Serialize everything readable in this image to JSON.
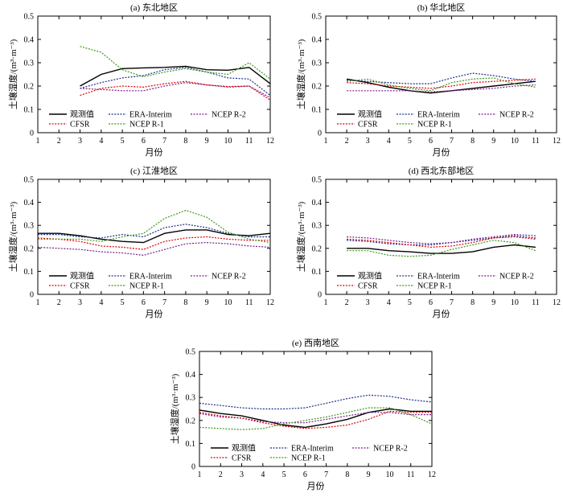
{
  "chart_data": [
    {
      "type": "line",
      "title": "(a) 东北地区",
      "xlabel": "月份",
      "ylabel": "土壤湿度/(m³·m⁻³)",
      "xticks": [
        1,
        2,
        3,
        4,
        5,
        6,
        7,
        8,
        9,
        10,
        11,
        12
      ],
      "yticks": [
        0,
        0.1,
        0.2,
        0.3,
        0.4,
        0.5
      ],
      "xlim": [
        1,
        12
      ],
      "ylim": [
        0,
        0.5
      ],
      "grid": false,
      "legend_position": "bottom-left",
      "series": [
        {
          "name": "观测值",
          "color": "#000000",
          "style": "solid",
          "x": [
            3,
            4,
            5,
            6,
            7,
            8,
            9,
            10,
            11,
            12
          ],
          "values": [
            0.2,
            0.25,
            0.275,
            0.278,
            0.28,
            0.285,
            0.27,
            0.268,
            0.28,
            0.21
          ]
        },
        {
          "name": "ERA-Interim",
          "color": "#1f2d8a",
          "style": "dotted",
          "x": [
            3,
            4,
            5,
            6,
            7,
            8,
            9,
            10,
            11,
            12
          ],
          "values": [
            0.19,
            0.215,
            0.235,
            0.245,
            0.27,
            0.28,
            0.26,
            0.235,
            0.23,
            0.16
          ]
        },
        {
          "name": "NCEP R-2",
          "color": "#7a1f8a",
          "style": "dotted",
          "x": [
            3,
            4,
            5,
            6,
            7,
            8,
            9,
            10,
            11,
            12
          ],
          "values": [
            0.19,
            0.185,
            0.18,
            0.18,
            0.2,
            0.215,
            0.205,
            0.195,
            0.2,
            0.15
          ]
        },
        {
          "name": "CFSR",
          "color": "#e00000",
          "style": "dotted",
          "x": [
            3,
            4,
            5,
            6,
            7,
            8,
            9,
            10,
            11,
            12
          ],
          "values": [
            0.16,
            0.19,
            0.2,
            0.195,
            0.21,
            0.22,
            0.205,
            0.198,
            0.2,
            0.14
          ]
        },
        {
          "name": "NCEP R-1",
          "color": "#3a9a1a",
          "style": "dotted",
          "x": [
            3,
            4,
            5,
            6,
            7,
            8,
            9,
            10,
            11,
            12
          ],
          "values": [
            0.37,
            0.345,
            0.27,
            0.24,
            0.26,
            0.275,
            0.26,
            0.25,
            0.3,
            0.23
          ]
        }
      ]
    },
    {
      "type": "line",
      "title": "(b) 华北地区",
      "xlabel": "月份",
      "ylabel": "土壤湿度/(m³·m⁻³)",
      "xticks": [
        1,
        2,
        3,
        4,
        5,
        6,
        7,
        8,
        9,
        10,
        11,
        12
      ],
      "yticks": [
        0,
        0.1,
        0.2,
        0.3,
        0.4,
        0.5
      ],
      "xlim": [
        1,
        12
      ],
      "ylim": [
        0,
        0.5
      ],
      "grid": false,
      "legend_position": "bottom-left",
      "series": [
        {
          "name": "观测值",
          "color": "#000000",
          "style": "solid",
          "x": [
            2,
            3,
            4,
            5,
            6,
            7,
            8,
            9,
            10,
            11
          ],
          "values": [
            0.23,
            0.215,
            0.195,
            0.18,
            0.17,
            0.18,
            0.19,
            0.2,
            0.21,
            0.22
          ]
        },
        {
          "name": "ERA-Interim",
          "color": "#1f2d8a",
          "style": "dotted",
          "x": [
            2,
            3,
            4,
            5,
            6,
            7,
            8,
            9,
            10,
            11
          ],
          "values": [
            0.225,
            0.22,
            0.215,
            0.21,
            0.21,
            0.235,
            0.255,
            0.245,
            0.23,
            0.22
          ]
        },
        {
          "name": "NCEP R-2",
          "color": "#7a1f8a",
          "style": "dotted",
          "x": [
            2,
            3,
            4,
            5,
            6,
            7,
            8,
            9,
            10,
            11
          ],
          "values": [
            0.18,
            0.18,
            0.18,
            0.18,
            0.175,
            0.18,
            0.185,
            0.19,
            0.2,
            0.205
          ]
        },
        {
          "name": "CFSR",
          "color": "#e00000",
          "style": "dotted",
          "x": [
            2,
            3,
            4,
            5,
            6,
            7,
            8,
            9,
            10,
            11
          ],
          "values": [
            0.215,
            0.21,
            0.2,
            0.195,
            0.19,
            0.2,
            0.215,
            0.22,
            0.225,
            0.23
          ]
        },
        {
          "name": "NCEP R-1",
          "color": "#3a9a1a",
          "style": "dotted",
          "x": [
            2,
            3,
            4,
            5,
            6,
            7,
            8,
            9,
            10,
            11
          ],
          "values": [
            0.22,
            0.23,
            0.205,
            0.19,
            0.18,
            0.215,
            0.23,
            0.235,
            0.21,
            0.195
          ]
        }
      ]
    },
    {
      "type": "line",
      "title": "(c) 江淮地区",
      "xlabel": "月份",
      "ylabel": "土壤湿度/(m³·m⁻³)",
      "xticks": [
        1,
        2,
        3,
        4,
        5,
        6,
        7,
        8,
        9,
        10,
        11,
        12
      ],
      "yticks": [
        0,
        0.1,
        0.2,
        0.3,
        0.4,
        0.5
      ],
      "xlim": [
        1,
        12
      ],
      "ylim": [
        0,
        0.5
      ],
      "grid": false,
      "legend_position": "bottom-left",
      "series": [
        {
          "name": "观测值",
          "color": "#000000",
          "style": "solid",
          "x": [
            1,
            2,
            3,
            4,
            5,
            6,
            7,
            8,
            9,
            10,
            11,
            12
          ],
          "values": [
            0.265,
            0.265,
            0.255,
            0.24,
            0.23,
            0.225,
            0.265,
            0.28,
            0.28,
            0.26,
            0.255,
            0.265
          ]
        },
        {
          "name": "ERA-Interim",
          "color": "#1f2d8a",
          "style": "dotted",
          "x": [
            1,
            2,
            3,
            4,
            5,
            6,
            7,
            8,
            9,
            10,
            11,
            12
          ],
          "values": [
            0.26,
            0.26,
            0.25,
            0.245,
            0.26,
            0.25,
            0.29,
            0.305,
            0.29,
            0.265,
            0.25,
            0.25
          ]
        },
        {
          "name": "NCEP R-2",
          "color": "#7a1f8a",
          "style": "dotted",
          "x": [
            1,
            2,
            3,
            4,
            5,
            6,
            7,
            8,
            9,
            10,
            11,
            12
          ],
          "values": [
            0.205,
            0.2,
            0.195,
            0.185,
            0.18,
            0.17,
            0.195,
            0.22,
            0.225,
            0.22,
            0.21,
            0.205
          ]
        },
        {
          "name": "CFSR",
          "color": "#e00000",
          "style": "dotted",
          "x": [
            1,
            2,
            3,
            4,
            5,
            6,
            7,
            8,
            9,
            10,
            11,
            12
          ],
          "values": [
            0.245,
            0.24,
            0.23,
            0.21,
            0.205,
            0.195,
            0.23,
            0.245,
            0.25,
            0.24,
            0.235,
            0.235
          ]
        },
        {
          "name": "NCEP R-1",
          "color": "#3a9a1a",
          "style": "dotted",
          "x": [
            1,
            2,
            3,
            4,
            5,
            6,
            7,
            8,
            9,
            10,
            11,
            12
          ],
          "values": [
            0.24,
            0.24,
            0.24,
            0.23,
            0.25,
            0.265,
            0.33,
            0.365,
            0.335,
            0.27,
            0.24,
            0.225
          ]
        }
      ]
    },
    {
      "type": "line",
      "title": "(d) 西北东部地区",
      "xlabel": "月份",
      "ylabel": "土壤湿度/(m³·m⁻³)",
      "xticks": [
        1,
        2,
        3,
        4,
        5,
        6,
        7,
        8,
        9,
        10,
        11,
        12
      ],
      "yticks": [
        0,
        0.1,
        0.2,
        0.3,
        0.4,
        0.5
      ],
      "xlim": [
        1,
        12
      ],
      "ylim": [
        0,
        0.5
      ],
      "grid": false,
      "legend_position": "bottom-left",
      "series": [
        {
          "name": "观测值",
          "color": "#000000",
          "style": "solid",
          "x": [
            2,
            3,
            4,
            5,
            6,
            7,
            8,
            9,
            10,
            11
          ],
          "values": [
            0.2,
            0.2,
            0.19,
            0.185,
            0.178,
            0.178,
            0.185,
            0.205,
            0.215,
            0.205
          ]
        },
        {
          "name": "ERA-Interim",
          "color": "#1f2d8a",
          "style": "dotted",
          "x": [
            2,
            3,
            4,
            5,
            6,
            7,
            8,
            9,
            10,
            11
          ],
          "values": [
            0.235,
            0.23,
            0.22,
            0.215,
            0.215,
            0.225,
            0.235,
            0.245,
            0.255,
            0.245
          ]
        },
        {
          "name": "NCEP R-2",
          "color": "#7a1f8a",
          "style": "dotted",
          "x": [
            2,
            3,
            4,
            5,
            6,
            7,
            8,
            9,
            10,
            11
          ],
          "values": [
            0.25,
            0.245,
            0.235,
            0.225,
            0.22,
            0.225,
            0.24,
            0.25,
            0.26,
            0.255
          ]
        },
        {
          "name": "CFSR",
          "color": "#e00000",
          "style": "dotted",
          "x": [
            2,
            3,
            4,
            5,
            6,
            7,
            8,
            9,
            10,
            11
          ],
          "values": [
            0.24,
            0.235,
            0.225,
            0.215,
            0.205,
            0.21,
            0.225,
            0.245,
            0.25,
            0.24
          ]
        },
        {
          "name": "NCEP R-1",
          "color": "#3a9a1a",
          "style": "dotted",
          "x": [
            2,
            3,
            4,
            5,
            6,
            7,
            8,
            9,
            10,
            11
          ],
          "values": [
            0.19,
            0.19,
            0.17,
            0.165,
            0.17,
            0.195,
            0.215,
            0.235,
            0.225,
            0.19
          ]
        }
      ]
    },
    {
      "type": "line",
      "title": "(e) 西南地区",
      "xlabel": "月份",
      "ylabel": "土壤湿度/(m³·m⁻³)",
      "xticks": [
        1,
        2,
        3,
        4,
        5,
        6,
        7,
        8,
        9,
        10,
        11,
        12
      ],
      "yticks": [
        0,
        0.1,
        0.2,
        0.3,
        0.4,
        0.5
      ],
      "xlim": [
        1,
        12
      ],
      "ylim": [
        0,
        0.5
      ],
      "grid": false,
      "legend_position": "bottom-left",
      "series": [
        {
          "name": "观测值",
          "color": "#000000",
          "style": "solid",
          "x": [
            1,
            2,
            3,
            4,
            5,
            6,
            7,
            8,
            9,
            10,
            11,
            12
          ],
          "values": [
            0.245,
            0.23,
            0.22,
            0.2,
            0.18,
            0.17,
            0.185,
            0.205,
            0.235,
            0.25,
            0.24,
            0.24
          ]
        },
        {
          "name": "ERA-Interim",
          "color": "#1f2d8a",
          "style": "dotted",
          "x": [
            1,
            2,
            3,
            4,
            5,
            6,
            7,
            8,
            9,
            10,
            11,
            12
          ],
          "values": [
            0.275,
            0.265,
            0.255,
            0.25,
            0.25,
            0.255,
            0.275,
            0.295,
            0.31,
            0.305,
            0.29,
            0.28
          ]
        },
        {
          "name": "NCEP R-2",
          "color": "#7a1f8a",
          "style": "dotted",
          "x": [
            1,
            2,
            3,
            4,
            5,
            6,
            7,
            8,
            9,
            10,
            11,
            12
          ],
          "values": [
            0.23,
            0.215,
            0.21,
            0.195,
            0.19,
            0.19,
            0.205,
            0.22,
            0.235,
            0.235,
            0.225,
            0.225
          ]
        },
        {
          "name": "CFSR",
          "color": "#e00000",
          "style": "dotted",
          "x": [
            1,
            2,
            3,
            4,
            5,
            6,
            7,
            8,
            9,
            10,
            11,
            12
          ],
          "values": [
            0.235,
            0.22,
            0.21,
            0.19,
            0.175,
            0.165,
            0.17,
            0.18,
            0.205,
            0.24,
            0.235,
            0.235
          ]
        },
        {
          "name": "NCEP R-1",
          "color": "#3a9a1a",
          "style": "dotted",
          "x": [
            1,
            2,
            3,
            4,
            5,
            6,
            7,
            8,
            9,
            10,
            11,
            12
          ],
          "values": [
            0.17,
            0.165,
            0.16,
            0.165,
            0.185,
            0.2,
            0.215,
            0.235,
            0.255,
            0.255,
            0.225,
            0.185
          ]
        }
      ]
    }
  ]
}
